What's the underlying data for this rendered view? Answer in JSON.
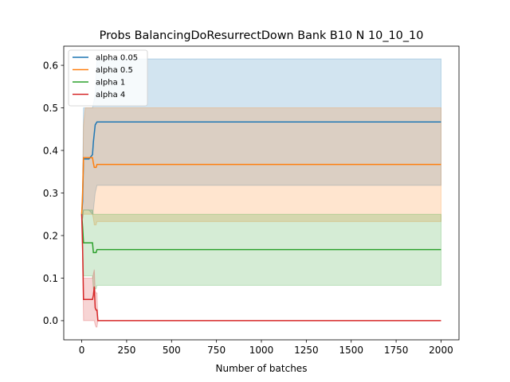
{
  "chart_data": {
    "type": "line",
    "title": "Probs BalancingDoResurrectDown Bank B10 N 10_10_10",
    "xlabel": "Number of batches",
    "ylabel": "",
    "xlim": [
      -100,
      2100
    ],
    "ylim": [
      -0.045,
      0.645
    ],
    "xticks": [
      0,
      250,
      500,
      750,
      1000,
      1250,
      1500,
      1750,
      2000
    ],
    "xtick_labels": [
      "0",
      "250",
      "500",
      "750",
      "1000",
      "1250",
      "1500",
      "1750",
      "2000"
    ],
    "yticks": [
      0.0,
      0.1,
      0.2,
      0.3,
      0.4,
      0.5,
      0.6
    ],
    "ytick_labels": [
      "0.0",
      "0.1",
      "0.2",
      "0.3",
      "0.4",
      "0.5",
      "0.6"
    ],
    "legend_position": "top-left",
    "grid": false,
    "series": [
      {
        "name": "alpha 0.05",
        "color": "#1f77b4",
        "x": [
          0,
          5,
          10,
          20,
          40,
          60,
          65,
          70,
          75,
          85,
          2000
        ],
        "y": [
          0.25,
          0.28,
          0.38,
          0.38,
          0.38,
          0.39,
          0.42,
          0.44,
          0.46,
          0.467,
          0.467
        ],
        "upper": [
          0.25,
          0.32,
          0.5,
          0.5,
          0.5,
          0.5,
          0.51,
          0.52,
          0.53,
          0.615,
          0.615
        ],
        "lower": [
          0.25,
          0.24,
          0.26,
          0.26,
          0.26,
          0.25,
          0.26,
          0.28,
          0.3,
          0.318,
          0.318
        ]
      },
      {
        "name": "alpha 0.5",
        "color": "#ff7f0e",
        "x": [
          0,
          5,
          10,
          20,
          60,
          65,
          70,
          80,
          85,
          2000
        ],
        "y": [
          0.25,
          0.3,
          0.383,
          0.383,
          0.383,
          0.37,
          0.36,
          0.36,
          0.367,
          0.367
        ],
        "upper": [
          0.25,
          0.3,
          0.46,
          0.5,
          0.5,
          0.5,
          0.5,
          0.5,
          0.5,
          0.5
        ],
        "lower": [
          0.25,
          0.24,
          0.25,
          0.25,
          0.25,
          0.24,
          0.225,
          0.225,
          0.233,
          0.233
        ]
      },
      {
        "name": "alpha 1",
        "color": "#2ca02c",
        "x": [
          0,
          5,
          10,
          20,
          60,
          65,
          70,
          80,
          85,
          2000
        ],
        "y": [
          0.25,
          0.22,
          0.183,
          0.183,
          0.183,
          0.16,
          0.16,
          0.16,
          0.167,
          0.167
        ],
        "upper": [
          0.25,
          0.25,
          0.26,
          0.26,
          0.26,
          0.25,
          0.25,
          0.25,
          0.25,
          0.25
        ],
        "lower": [
          0.25,
          0.18,
          0.105,
          0.105,
          0.105,
          0.075,
          0.075,
          0.075,
          0.083,
          0.083
        ]
      },
      {
        "name": "alpha 4",
        "color": "#d62728",
        "x": [
          0,
          5,
          10,
          20,
          60,
          65,
          70,
          75,
          80,
          85,
          90,
          2000
        ],
        "y": [
          0.25,
          0.17,
          0.05,
          0.05,
          0.05,
          0.06,
          0.08,
          0.03,
          0.025,
          0.025,
          0.0,
          0.0
        ],
        "upper": [
          0.25,
          0.17,
          0.1,
          0.1,
          0.1,
          0.11,
          0.12,
          0.07,
          0.065,
          0.065,
          0.0,
          0.0
        ],
        "lower": [
          0.25,
          0.14,
          0.0,
          0.0,
          0.0,
          0.0,
          0.0,
          -0.01,
          -0.015,
          -0.015,
          0.0,
          0.0
        ]
      }
    ]
  }
}
